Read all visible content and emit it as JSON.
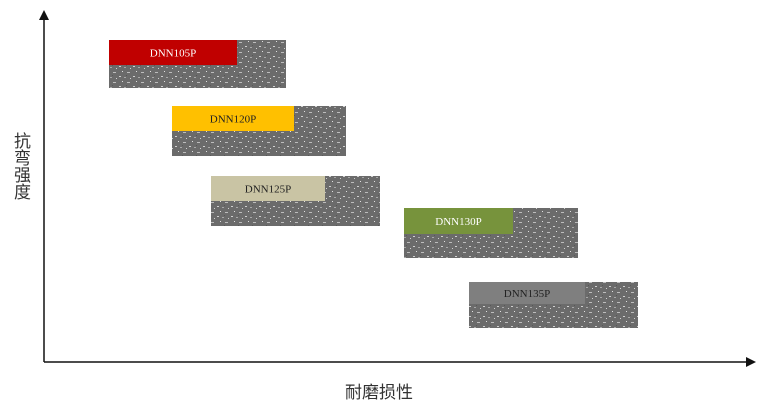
{
  "axes": {
    "x_label": "耐磨损性",
    "y_label": "抗弯强度"
  },
  "items": [
    {
      "label": "DNN105P"
    },
    {
      "label": "DNN120P"
    },
    {
      "label": "DNN125P"
    },
    {
      "label": "DNN130P"
    },
    {
      "label": "DNN135P"
    }
  ]
}
